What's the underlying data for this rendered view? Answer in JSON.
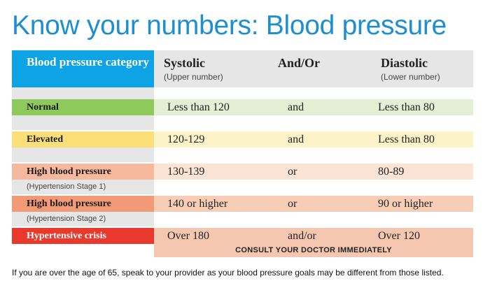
{
  "title": "Know your numbers: Blood pressure",
  "header": {
    "category": "Blood pressure category",
    "systolic": "Systolic",
    "systolic_sub": "(Upper number)",
    "andor": "And/Or",
    "diastolic": "Diastolic",
    "diastolic_sub": "(Lower number)"
  },
  "rows": [
    {
      "category": "Normal",
      "systolic": "Less than 120",
      "andor": "and",
      "diastolic": "Less than 80",
      "cat_color": "#8dc95b",
      "bar_color": "#e3f0d4"
    },
    {
      "category": "Elevated",
      "systolic": "120-129",
      "andor": "and",
      "diastolic": "Less than 80",
      "cat_color": "#fbe07a",
      "bar_color": "#fdf3c9"
    },
    {
      "category": "High blood pressure",
      "sub": "(Hypertension Stage 1)",
      "systolic": "130-139",
      "andor": "or",
      "diastolic": "80-89",
      "cat_color": "#f6b99e",
      "bar_color": "#fbe3d6"
    },
    {
      "category": "High blood pressure",
      "sub": "(Hypertension Stage 2)",
      "systolic": "140 or higher",
      "andor": "or",
      "diastolic": "90 or higher",
      "cat_color": "#f29a75",
      "bar_color": "#f8cdb6"
    },
    {
      "category": "Hypertensive crisis",
      "systolic": "Over 180",
      "andor": "and/or",
      "diastolic": "Over 120",
      "cat_color": "#e8392c",
      "bar_color": "#f6c7b0",
      "note": "CONSULT YOUR DOCTOR IMMEDIATELY"
    }
  ],
  "footnote": "If you are over the age of 65, speak to your provider as your blood pressure goals may be different from those listed."
}
